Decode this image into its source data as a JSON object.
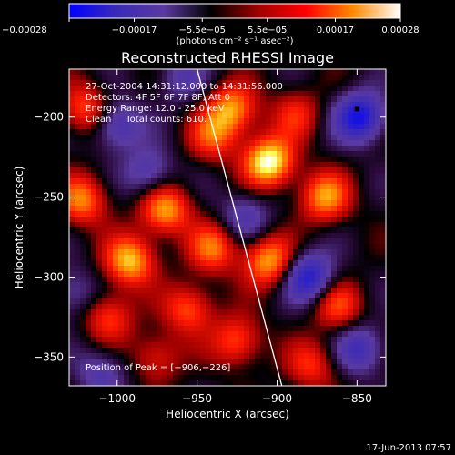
{
  "chart_data": {
    "type": "heatmap",
    "title": "Reconstructed RHESSI Image",
    "xlabel": "Heliocentric X (arcsec)",
    "ylabel": "Heliocentric Y (arcsec)",
    "xlim": [
      -1030,
      -832
    ],
    "ylim": [
      -368,
      -170
    ],
    "x_ticks": [
      -1000,
      -950,
      -900,
      -850
    ],
    "x_tick_labels": [
      "−1000",
      "−950",
      "−900",
      "−850"
    ],
    "y_ticks": [
      -200,
      -250,
      -300,
      -350
    ],
    "y_tick_labels": [
      "−200",
      "−250",
      "−300",
      "−350"
    ],
    "colorbar": {
      "range": [
        -0.00028,
        0.00028
      ],
      "ticks": [
        -0.00028,
        -0.00017,
        -5.5e-05,
        5.5e-05,
        0.00017,
        0.00028
      ],
      "tick_labels": [
        "−0.00028",
        "−0.00017",
        "−5.5e−05",
        "5.5e−05",
        "0.00017",
        "0.00028"
      ],
      "unit_label": "(photons cm⁻² s⁻¹ asec⁻²)",
      "colors": [
        "#0000ff",
        "#3a2ab8",
        "#5a3aa0",
        "#000000",
        "#a00000",
        "#ff0000",
        "#ff8a00",
        "#ffffff"
      ]
    },
    "annotations": [
      "27-Oct-2004 14:31:12.000 to 14:31:56.000",
      "Detectors: 4F 5F 6F 7F 8F, Att 0",
      "Energy Range: 12.0 - 25.0 keV",
      "Clean     Total counts: 610."
    ],
    "peak_label": "Position of Peak = [−906,−226]",
    "peak_position": [
      -906,
      -226
    ],
    "blobs": [
      {
        "x": -905,
        "y": -228,
        "amp": 1.0
      },
      {
        "x": -928,
        "y": -195,
        "amp": 0.7
      },
      {
        "x": -940,
        "y": -212,
        "amp": 0.5
      },
      {
        "x": -970,
        "y": -258,
        "amp": 0.75
      },
      {
        "x": -992,
        "y": -290,
        "amp": 0.8
      },
      {
        "x": -1022,
        "y": -252,
        "amp": 0.65
      },
      {
        "x": -1020,
        "y": -195,
        "amp": 0.55
      },
      {
        "x": -1005,
        "y": -325,
        "amp": 0.5
      },
      {
        "x": -955,
        "y": -320,
        "amp": 0.55
      },
      {
        "x": -940,
        "y": -282,
        "amp": 0.6
      },
      {
        "x": -905,
        "y": -290,
        "amp": 0.75
      },
      {
        "x": -925,
        "y": -340,
        "amp": 0.55
      },
      {
        "x": -870,
        "y": -250,
        "amp": 0.7
      },
      {
        "x": -862,
        "y": -318,
        "amp": 0.5
      },
      {
        "x": -878,
        "y": -355,
        "amp": 0.45
      },
      {
        "x": -975,
        "y": -350,
        "amp": 0.4
      },
      {
        "x": -888,
        "y": -198,
        "amp": 0.4
      },
      {
        "x": -1000,
        "y": -205,
        "amp": -0.55
      },
      {
        "x": -980,
        "y": -235,
        "amp": -0.45
      },
      {
        "x": -1010,
        "y": -360,
        "amp": -0.4
      },
      {
        "x": -880,
        "y": -300,
        "amp": -0.75
      },
      {
        "x": -848,
        "y": -200,
        "amp": -0.85
      },
      {
        "x": -848,
        "y": -345,
        "amp": -0.55
      },
      {
        "x": -920,
        "y": -262,
        "amp": -0.4
      },
      {
        "x": -960,
        "y": -175,
        "amp": -0.35
      },
      {
        "x": -1028,
        "y": -310,
        "amp": -0.35
      }
    ],
    "limb_line": [
      [
        -950,
        -170
      ],
      [
        -897,
        -368
      ]
    ],
    "peak_marker": [
      -850,
      -195
    ]
  },
  "footer": {
    "timestamp": "17-Jun-2013 07:57"
  }
}
